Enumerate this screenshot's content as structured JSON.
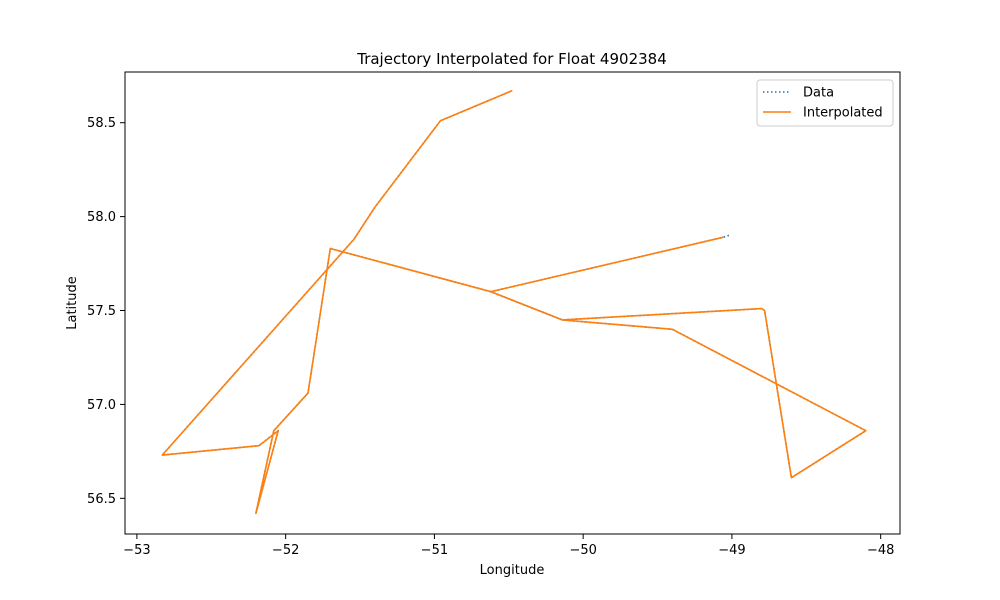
{
  "chart_data": {
    "type": "line",
    "title": "Trajectory Interpolated for Float 4902384",
    "xlabel": "Longitude",
    "ylabel": "Latitude",
    "xlim": [
      -53.08,
      -47.87
    ],
    "ylim": [
      56.31,
      58.77
    ],
    "xticks": [
      -53,
      -52,
      -51,
      -50,
      -49,
      -48
    ],
    "xtick_labels": [
      "−53",
      "−52",
      "−51",
      "−50",
      "−49",
      "−48"
    ],
    "yticks": [
      56.5,
      57.0,
      57.5,
      58.0,
      58.5
    ],
    "ytick_labels": [
      "56.5",
      "57.0",
      "57.5",
      "58.0",
      "58.5"
    ],
    "grid": false,
    "legend_position": "top-right",
    "series": [
      {
        "name": "Data",
        "style": "dotted",
        "color": "#1f77b4",
        "x": [
          -49.02,
          -49.06,
          -50.62,
          -50.14,
          -49.4,
          -48.1,
          -48.6,
          -48.78,
          -48.8,
          -50.14,
          -50.62,
          -51.7,
          -51.85,
          -52.08,
          -52.2,
          -52.05,
          -52.18,
          -52.83,
          -51.54,
          -51.4,
          -50.96,
          -50.48
        ],
        "y": [
          57.9,
          57.89,
          57.6,
          57.45,
          57.4,
          56.86,
          56.61,
          57.5,
          57.51,
          57.45,
          57.6,
          57.83,
          57.06,
          56.86,
          56.42,
          56.86,
          56.78,
          56.73,
          57.88,
          58.05,
          58.51,
          58.67
        ]
      },
      {
        "name": "Interpolated",
        "style": "solid",
        "color": "#ff7f0e",
        "x": [
          -49.06,
          -50.62,
          -50.14,
          -49.4,
          -48.1,
          -48.6,
          -48.78,
          -48.8,
          -50.14,
          -50.62,
          -51.7,
          -51.85,
          -52.08,
          -52.2,
          -52.05,
          -52.18,
          -52.83,
          -51.54,
          -51.4,
          -50.96,
          -50.48
        ],
        "y": [
          57.89,
          57.6,
          57.45,
          57.4,
          56.86,
          56.61,
          57.5,
          57.51,
          57.45,
          57.6,
          57.83,
          57.06,
          56.86,
          56.42,
          56.86,
          56.78,
          56.73,
          57.88,
          58.05,
          58.51,
          58.67
        ]
      }
    ]
  }
}
